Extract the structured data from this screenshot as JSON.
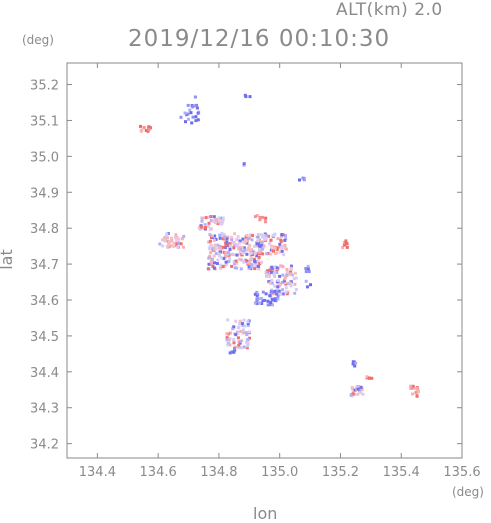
{
  "header": {
    "altitude_label": "ALT(km)  2.0",
    "timestamp": "2019/12/16 00:10:30"
  },
  "chart_data": {
    "type": "scatter",
    "title": "2019/12/16 00:10:30",
    "subtitle": "ALT(km)  2.0",
    "xlabel": "lon",
    "ylabel": "lat",
    "x_unit": "(deg)",
    "y_unit": "(deg)",
    "xlim": [
      134.3,
      135.6
    ],
    "ylim": [
      34.16,
      35.26
    ],
    "x_ticks": [
      134.4,
      134.6,
      134.8,
      135.0,
      135.2,
      135.4,
      135.6
    ],
    "x_tick_labels": [
      "134.4",
      "134.6",
      "134.8",
      "135.0",
      "135.2",
      "135.4",
      "135.6"
    ],
    "y_ticks": [
      34.2,
      34.3,
      34.4,
      34.5,
      34.6,
      34.7,
      34.8,
      34.9,
      35.0,
      35.1,
      35.2
    ],
    "y_tick_labels": [
      "34.2",
      "34.3",
      "34.4",
      "34.5",
      "34.6",
      "34.7",
      "34.8",
      "34.9",
      "35.0",
      "35.1",
      "35.2"
    ],
    "grid": false,
    "colors": {
      "positive": "#f07a7a",
      "negative": "#7a7af0",
      "mixed": "#c8b4e6",
      "axis": "#8a8a8a"
    },
    "clusters": [
      {
        "lon": 134.55,
        "lat": 35.08,
        "dlon": 0.02,
        "dlat": 0.01,
        "n": 10,
        "tone": "positive"
      },
      {
        "lon": 134.7,
        "lat": 35.13,
        "dlon": 0.03,
        "dlat": 0.04,
        "n": 22,
        "tone": "negative"
      },
      {
        "lon": 134.89,
        "lat": 35.17,
        "dlon": 0.01,
        "dlat": 0.005,
        "n": 3,
        "tone": "negative"
      },
      {
        "lon": 134.88,
        "lat": 34.98,
        "dlon": 0.005,
        "dlat": 0.005,
        "n": 2,
        "tone": "negative"
      },
      {
        "lon": 135.07,
        "lat": 34.94,
        "dlon": 0.01,
        "dlat": 0.005,
        "n": 4,
        "tone": "negative"
      },
      {
        "lon": 134.64,
        "lat": 34.77,
        "dlon": 0.04,
        "dlat": 0.02,
        "n": 40,
        "tone": "mixed"
      },
      {
        "lon": 134.77,
        "lat": 34.82,
        "dlon": 0.04,
        "dlat": 0.02,
        "n": 45,
        "tone": "mixed"
      },
      {
        "lon": 134.85,
        "lat": 34.74,
        "dlon": 0.09,
        "dlat": 0.05,
        "n": 220,
        "tone": "mixed"
      },
      {
        "lon": 134.97,
        "lat": 34.76,
        "dlon": 0.05,
        "dlat": 0.03,
        "n": 70,
        "tone": "mixed"
      },
      {
        "lon": 135.0,
        "lat": 34.66,
        "dlon": 0.05,
        "dlat": 0.04,
        "n": 90,
        "tone": "mixed"
      },
      {
        "lon": 134.95,
        "lat": 34.61,
        "dlon": 0.04,
        "dlat": 0.02,
        "n": 40,
        "tone": "negative"
      },
      {
        "lon": 135.09,
        "lat": 34.67,
        "dlon": 0.01,
        "dlat": 0.03,
        "n": 8,
        "tone": "negative"
      },
      {
        "lon": 135.21,
        "lat": 34.76,
        "dlon": 0.01,
        "dlat": 0.01,
        "n": 8,
        "tone": "positive"
      },
      {
        "lon": 134.93,
        "lat": 34.83,
        "dlon": 0.02,
        "dlat": 0.01,
        "n": 8,
        "tone": "positive"
      },
      {
        "lon": 134.86,
        "lat": 34.51,
        "dlon": 0.04,
        "dlat": 0.04,
        "n": 60,
        "tone": "mixed"
      },
      {
        "lon": 134.84,
        "lat": 34.46,
        "dlon": 0.01,
        "dlat": 0.01,
        "n": 6,
        "tone": "negative"
      },
      {
        "lon": 135.25,
        "lat": 34.35,
        "dlon": 0.02,
        "dlat": 0.015,
        "n": 25,
        "tone": "mixed"
      },
      {
        "lon": 135.24,
        "lat": 34.43,
        "dlon": 0.01,
        "dlat": 0.01,
        "n": 5,
        "tone": "negative"
      },
      {
        "lon": 135.29,
        "lat": 34.39,
        "dlon": 0.01,
        "dlat": 0.005,
        "n": 6,
        "tone": "positive"
      },
      {
        "lon": 135.44,
        "lat": 34.35,
        "dlon": 0.015,
        "dlat": 0.015,
        "n": 14,
        "tone": "positive"
      }
    ]
  }
}
